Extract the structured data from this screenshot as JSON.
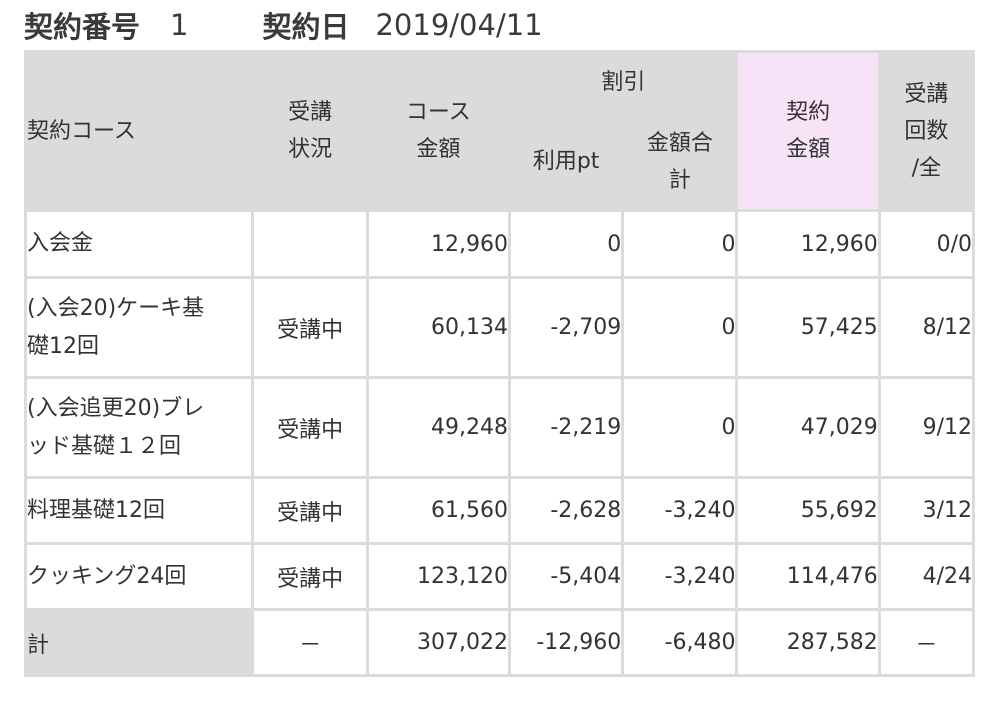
{
  "header": {
    "contract_no_label": "契約番号",
    "contract_no": "1",
    "contract_date_label": "契約日",
    "contract_date": "2019/04/11"
  },
  "columns": {
    "course": "契約コース",
    "status": [
      "受講",
      "状況"
    ],
    "course_amount": [
      "コース",
      "金額"
    ],
    "discount": "割引",
    "points": "利用pt",
    "discount_total": [
      "金額合",
      "計"
    ],
    "contract_amount": [
      "契約",
      "金額"
    ],
    "sessions": [
      "受講",
      "回数",
      "/全"
    ]
  },
  "rows": [
    {
      "course": [
        "入会金"
      ],
      "status": "",
      "course_amount": "12,960",
      "points": "0",
      "discount_total": "0",
      "contract_amount": "12,960",
      "sessions": "0/0"
    },
    {
      "course": [
        "(入会20)ケーキ基",
        "礎12回"
      ],
      "status": "受講中",
      "course_amount": "60,134",
      "points": "-2,709",
      "discount_total": "0",
      "contract_amount": "57,425",
      "sessions": "8/12"
    },
    {
      "course": [
        "(入会追更20)ブレ",
        "ッド基礎１２回"
      ],
      "status": "受講中",
      "course_amount": "49,248",
      "points": "-2,219",
      "discount_total": "0",
      "contract_amount": "47,029",
      "sessions": "9/12"
    },
    {
      "course": [
        "料理基礎12回"
      ],
      "status": "受講中",
      "course_amount": "61,560",
      "points": "-2,628",
      "discount_total": "-3,240",
      "contract_amount": "55,692",
      "sessions": "3/12"
    },
    {
      "course": [
        "クッキング24回"
      ],
      "status": "受講中",
      "course_amount": "123,120",
      "points": "-5,404",
      "discount_total": "-3,240",
      "contract_amount": "114,476",
      "sessions": "4/24"
    }
  ],
  "total": {
    "label": "計",
    "status": "－",
    "course_amount": "307,022",
    "points": "-12,960",
    "discount_total": "-6,480",
    "contract_amount": "287,582",
    "sessions": "－"
  },
  "colors": {
    "header_bg": "#dddbd9",
    "contract_amount_header_bg": "#f8e2f7"
  }
}
